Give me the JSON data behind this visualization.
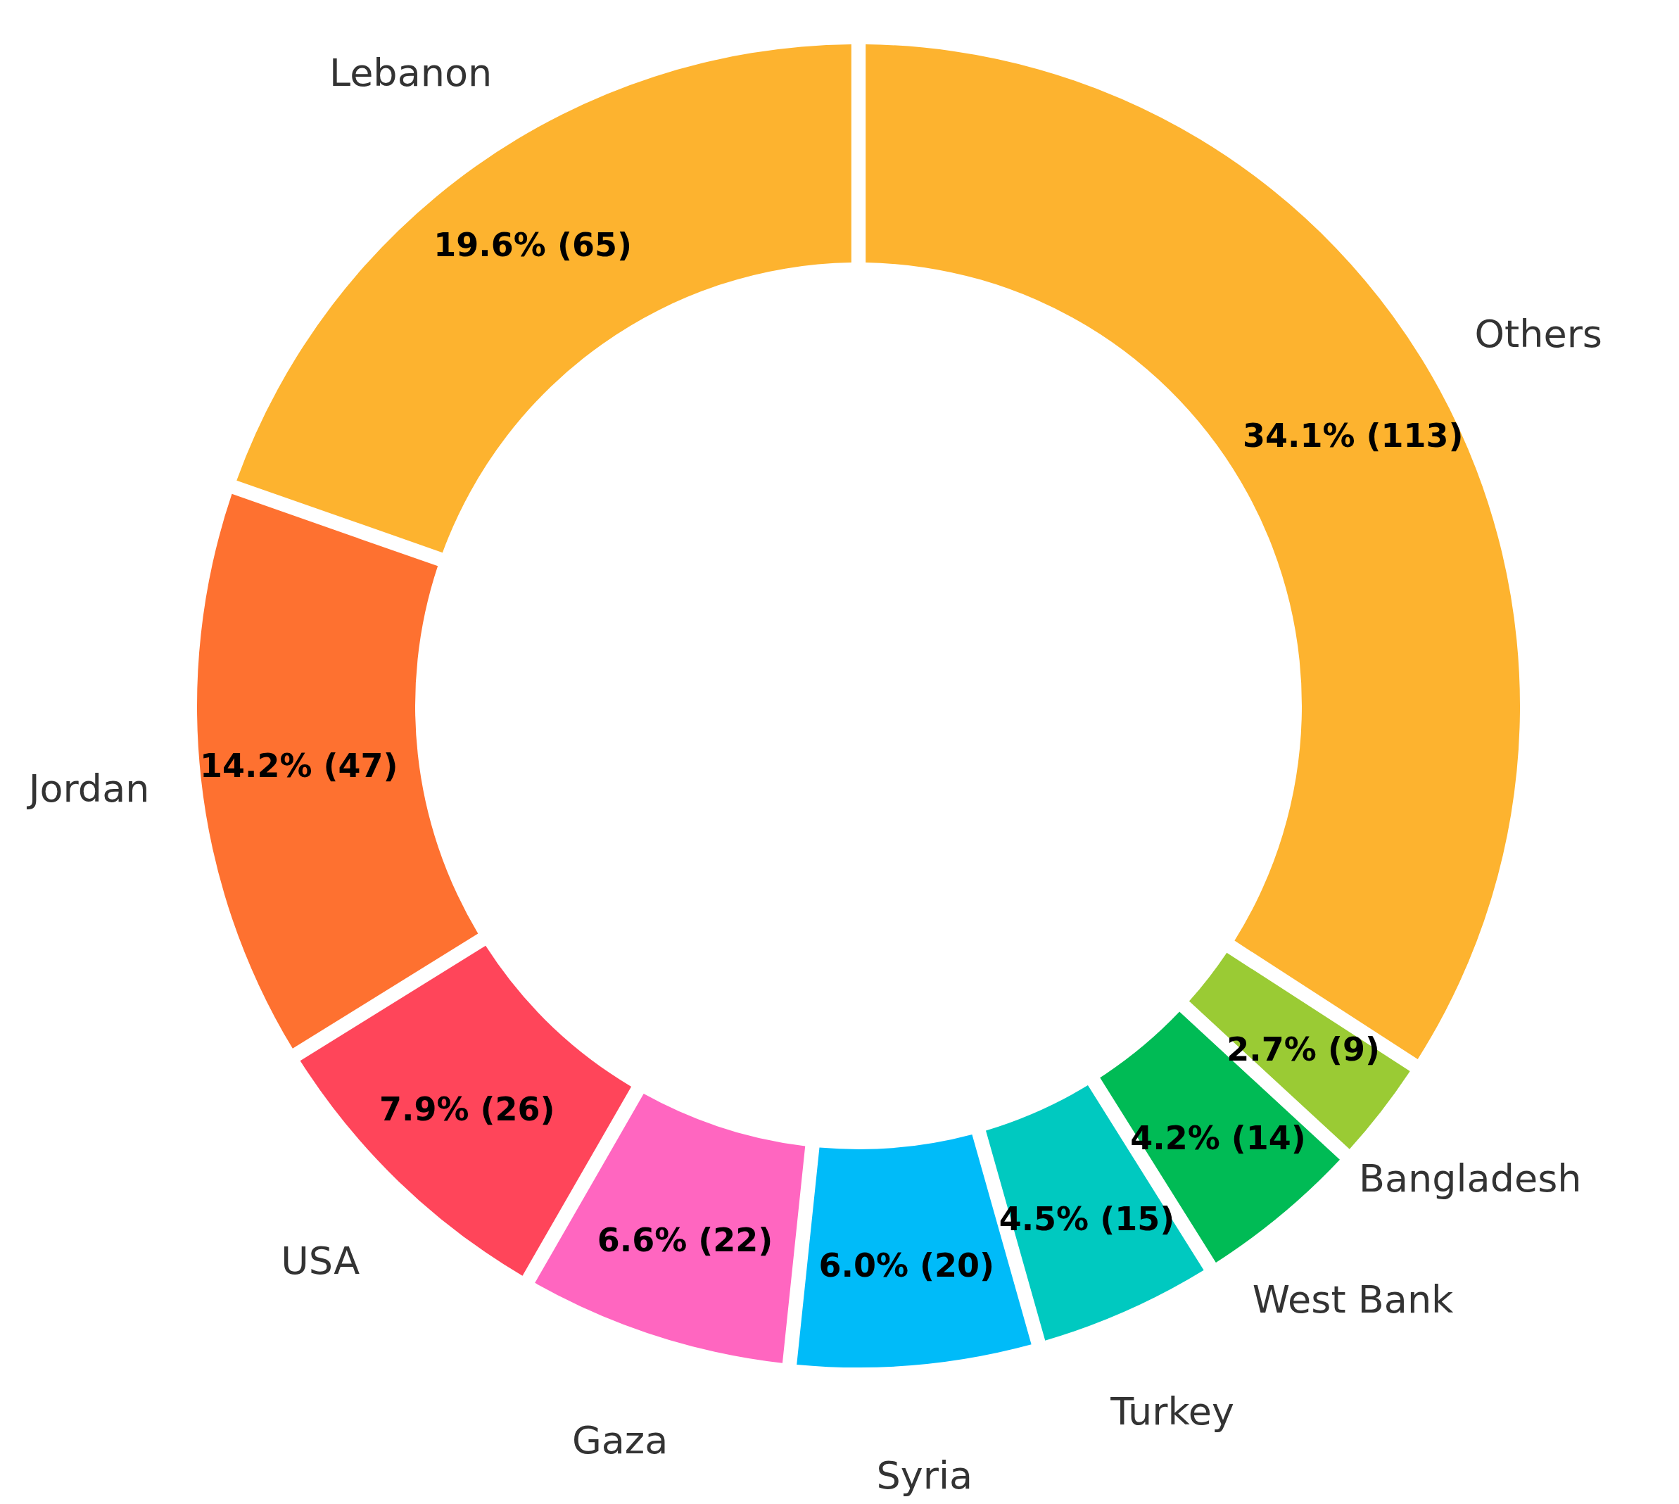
{
  "chart_data": {
    "type": "donut",
    "categories": [
      "Others",
      "Bangladesh",
      "West Bank",
      "Turkey",
      "Syria",
      "Gaza",
      "USA",
      "Jordan",
      "Lebanon"
    ],
    "values": [
      113,
      9,
      14,
      15,
      20,
      22,
      26,
      47,
      65
    ],
    "value_labels": [
      "34.1% (113)",
      "2.7% (9)",
      "4.2% (14)",
      "4.5% (15)",
      "6.0% (20)",
      "6.6% (22)",
      "7.9% (26)",
      "14.2% (47)",
      "19.6% (65)"
    ],
    "colors": [
      "#fdb32f",
      "#9acb34",
      "#00bb55",
      "#00c9c0",
      "#00bbf9",
      "#ff66c0",
      "#ff455a",
      "#fe7130",
      "#fdb32f"
    ]
  }
}
